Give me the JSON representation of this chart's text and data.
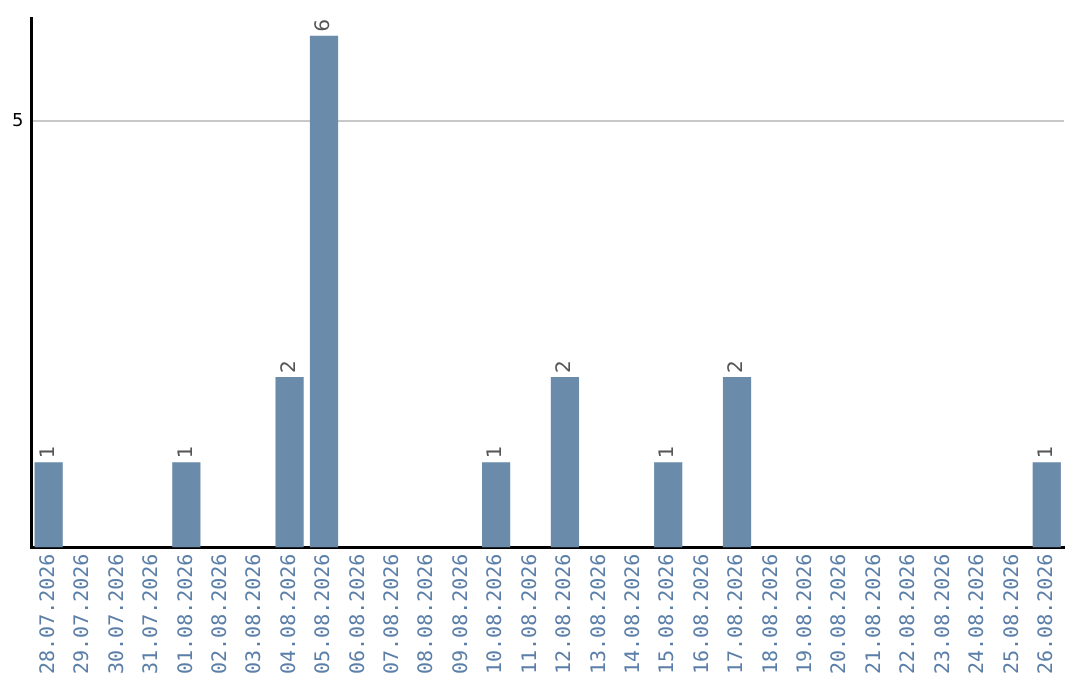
{
  "chart_data": {
    "type": "bar",
    "categories": [
      "28.07.2026",
      "29.07.2026",
      "30.07.2026",
      "31.07.2026",
      "01.08.2026",
      "02.08.2026",
      "03.08.2026",
      "04.08.2026",
      "05.08.2026",
      "06.08.2026",
      "07.08.2026",
      "08.08.2026",
      "09.08.2026",
      "10.08.2026",
      "11.08.2026",
      "12.08.2026",
      "13.08.2026",
      "14.08.2026",
      "15.08.2026",
      "16.08.2026",
      "17.08.2026",
      "18.08.2026",
      "19.08.2026",
      "20.08.2026",
      "21.08.2026",
      "22.08.2026",
      "23.08.2026",
      "24.08.2026",
      "25.08.2026",
      "26.08.2026"
    ],
    "values": [
      1,
      0,
      0,
      0,
      1,
      0,
      0,
      2,
      6,
      0,
      0,
      0,
      0,
      1,
      0,
      2,
      0,
      0,
      1,
      0,
      2,
      0,
      0,
      0,
      0,
      0,
      0,
      0,
      0,
      1
    ],
    "value_labels": [
      "1",
      null,
      null,
      null,
      "1",
      null,
      null,
      "2",
      "6",
      null,
      null,
      null,
      null,
      "1",
      null,
      "2",
      null,
      null,
      "1",
      null,
      "2",
      null,
      null,
      null,
      null,
      null,
      null,
      null,
      null,
      "1"
    ],
    "color": "#6a8caa",
    "ylim": [
      0,
      6.2
    ],
    "yticks": [
      5
    ],
    "grid": "y",
    "legend": false
  }
}
